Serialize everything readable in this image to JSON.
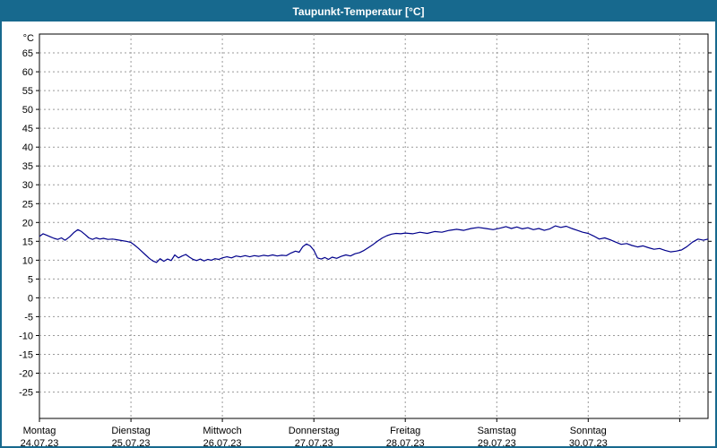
{
  "title": "Taupunkt-Temperatur [°C]",
  "chart_data": {
    "type": "line",
    "title": "Taupunkt-Temperatur [°C]",
    "ylabel_unit": "°C",
    "ylim": [
      -32,
      70
    ],
    "xlim": [
      0,
      7.31
    ],
    "yticks": [
      65,
      60,
      55,
      50,
      45,
      40,
      35,
      30,
      25,
      20,
      15,
      10,
      5,
      0,
      -5,
      -10,
      -15,
      -20,
      -25
    ],
    "xgrid": [
      1,
      2,
      3,
      4,
      5,
      6,
      7
    ],
    "xticks": [
      0,
      1,
      2,
      3,
      4,
      5,
      6,
      7
    ],
    "xlabels": [
      {
        "x": 0,
        "day": "Montag",
        "date": "24.07.23"
      },
      {
        "x": 1,
        "day": "Dienstag",
        "date": "25.07.23"
      },
      {
        "x": 2,
        "day": "Mittwoch",
        "date": "26.07.23"
      },
      {
        "x": 3,
        "day": "Donnerstag",
        "date": "27.07.23"
      },
      {
        "x": 4,
        "day": "Freitag",
        "date": "28.07.23"
      },
      {
        "x": 5,
        "day": "Samstag",
        "date": "29.07.23"
      },
      {
        "x": 6,
        "day": "Sonntag",
        "date": "30.07.23"
      }
    ],
    "grid": true,
    "legend": "none",
    "colors": {
      "title_bg": "#17698e",
      "title_text": "#ffffff",
      "line": "#00008b",
      "grid": "#9a9a9a",
      "plot_border": "#000000",
      "background": "#ffffff"
    },
    "series": [
      {
        "name": "Taupunkt",
        "color": "#00008b",
        "points": [
          [
            0.0,
            16.3
          ],
          [
            0.04,
            17.0
          ],
          [
            0.08,
            16.6
          ],
          [
            0.12,
            16.2
          ],
          [
            0.16,
            15.8
          ],
          [
            0.2,
            15.5
          ],
          [
            0.24,
            15.9
          ],
          [
            0.28,
            15.3
          ],
          [
            0.33,
            16.2
          ],
          [
            0.38,
            17.4
          ],
          [
            0.42,
            18.1
          ],
          [
            0.46,
            17.6
          ],
          [
            0.5,
            16.8
          ],
          [
            0.54,
            15.9
          ],
          [
            0.58,
            15.5
          ],
          [
            0.62,
            15.9
          ],
          [
            0.66,
            15.6
          ],
          [
            0.7,
            15.8
          ],
          [
            0.75,
            15.5
          ],
          [
            0.8,
            15.6
          ],
          [
            0.85,
            15.4
          ],
          [
            0.9,
            15.2
          ],
          [
            0.95,
            15.0
          ],
          [
            1.0,
            14.7
          ],
          [
            1.04,
            14.0
          ],
          [
            1.08,
            13.2
          ],
          [
            1.12,
            12.3
          ],
          [
            1.16,
            11.4
          ],
          [
            1.2,
            10.5
          ],
          [
            1.24,
            9.8
          ],
          [
            1.28,
            9.4
          ],
          [
            1.32,
            10.4
          ],
          [
            1.36,
            9.7
          ],
          [
            1.4,
            10.3
          ],
          [
            1.44,
            9.9
          ],
          [
            1.48,
            11.4
          ],
          [
            1.52,
            10.6
          ],
          [
            1.56,
            11.1
          ],
          [
            1.6,
            11.5
          ],
          [
            1.64,
            10.8
          ],
          [
            1.68,
            10.2
          ],
          [
            1.72,
            9.9
          ],
          [
            1.76,
            10.3
          ],
          [
            1.8,
            9.8
          ],
          [
            1.84,
            10.2
          ],
          [
            1.88,
            10.0
          ],
          [
            1.92,
            10.4
          ],
          [
            1.96,
            10.2
          ],
          [
            2.0,
            10.6
          ],
          [
            2.05,
            10.9
          ],
          [
            2.1,
            10.6
          ],
          [
            2.15,
            11.1
          ],
          [
            2.2,
            10.9
          ],
          [
            2.25,
            11.2
          ],
          [
            2.3,
            10.9
          ],
          [
            2.35,
            11.2
          ],
          [
            2.4,
            11.0
          ],
          [
            2.45,
            11.3
          ],
          [
            2.5,
            11.1
          ],
          [
            2.55,
            11.4
          ],
          [
            2.6,
            11.1
          ],
          [
            2.65,
            11.3
          ],
          [
            2.7,
            11.2
          ],
          [
            2.75,
            11.9
          ],
          [
            2.8,
            12.4
          ],
          [
            2.84,
            12.1
          ],
          [
            2.88,
            13.6
          ],
          [
            2.92,
            14.3
          ],
          [
            2.96,
            13.8
          ],
          [
            3.0,
            12.6
          ],
          [
            3.04,
            10.6
          ],
          [
            3.08,
            10.3
          ],
          [
            3.12,
            10.7
          ],
          [
            3.16,
            10.2
          ],
          [
            3.2,
            10.8
          ],
          [
            3.25,
            10.5
          ],
          [
            3.3,
            11.0
          ],
          [
            3.35,
            11.4
          ],
          [
            3.4,
            11.1
          ],
          [
            3.45,
            11.7
          ],
          [
            3.5,
            12.0
          ],
          [
            3.55,
            12.6
          ],
          [
            3.6,
            13.4
          ],
          [
            3.65,
            14.2
          ],
          [
            3.7,
            15.1
          ],
          [
            3.75,
            15.9
          ],
          [
            3.8,
            16.5
          ],
          [
            3.85,
            16.9
          ],
          [
            3.9,
            17.1
          ],
          [
            3.95,
            17.0
          ],
          [
            4.0,
            17.2
          ],
          [
            4.08,
            17.0
          ],
          [
            4.16,
            17.4
          ],
          [
            4.24,
            17.1
          ],
          [
            4.32,
            17.6
          ],
          [
            4.4,
            17.4
          ],
          [
            4.48,
            17.9
          ],
          [
            4.56,
            18.2
          ],
          [
            4.64,
            17.9
          ],
          [
            4.72,
            18.4
          ],
          [
            4.8,
            18.7
          ],
          [
            4.88,
            18.4
          ],
          [
            4.96,
            18.1
          ],
          [
            5.04,
            18.5
          ],
          [
            5.1,
            18.9
          ],
          [
            5.16,
            18.4
          ],
          [
            5.22,
            18.8
          ],
          [
            5.28,
            18.3
          ],
          [
            5.34,
            18.6
          ],
          [
            5.4,
            18.1
          ],
          [
            5.46,
            18.4
          ],
          [
            5.52,
            17.9
          ],
          [
            5.58,
            18.3
          ],
          [
            5.64,
            19.1
          ],
          [
            5.7,
            18.7
          ],
          [
            5.76,
            19.0
          ],
          [
            5.82,
            18.4
          ],
          [
            5.88,
            17.9
          ],
          [
            5.94,
            17.4
          ],
          [
            6.0,
            17.1
          ],
          [
            6.06,
            16.4
          ],
          [
            6.12,
            15.6
          ],
          [
            6.18,
            15.9
          ],
          [
            6.24,
            15.4
          ],
          [
            6.3,
            14.8
          ],
          [
            6.36,
            14.2
          ],
          [
            6.42,
            14.4
          ],
          [
            6.48,
            13.9
          ],
          [
            6.54,
            13.5
          ],
          [
            6.6,
            13.8
          ],
          [
            6.66,
            13.3
          ],
          [
            6.72,
            12.9
          ],
          [
            6.78,
            13.1
          ],
          [
            6.84,
            12.6
          ],
          [
            6.9,
            12.2
          ],
          [
            6.96,
            12.4
          ],
          [
            7.02,
            12.7
          ],
          [
            7.08,
            13.6
          ],
          [
            7.14,
            14.8
          ],
          [
            7.2,
            15.6
          ],
          [
            7.26,
            15.3
          ],
          [
            7.31,
            15.6
          ]
        ]
      }
    ]
  }
}
